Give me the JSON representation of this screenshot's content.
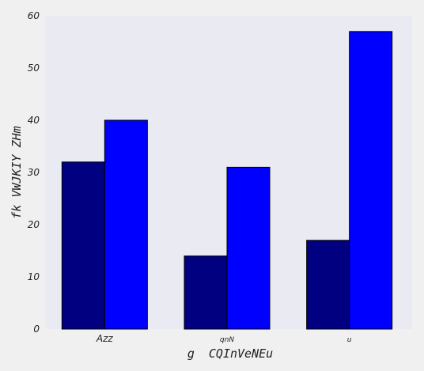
{
  "chart_data": {
    "type": "bar",
    "categories": [
      "Azz",
      "qnN",
      "u"
    ],
    "series": [
      {
        "values": [
          32,
          14,
          17
        ],
        "color": "#000080"
      },
      {
        "values": [
          40,
          31,
          57
        ],
        "color": "#0000ff"
      }
    ],
    "xlabel": "g  CQInVeNEu",
    "ylabel": "fk VWJKIY ZHm",
    "ylim": [
      0,
      60
    ],
    "yticks": [
      0,
      10,
      20,
      30,
      40,
      50,
      60
    ],
    "grid": false,
    "legend": "none",
    "plot_background": "#eaeaf2",
    "page_background": "#f0f0f0"
  }
}
